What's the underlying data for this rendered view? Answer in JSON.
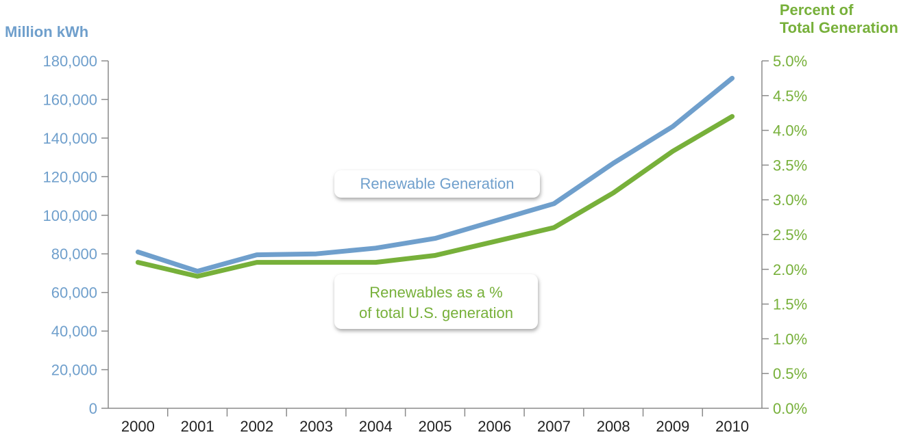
{
  "chart_data": {
    "type": "line",
    "categories": [
      "2000",
      "2001",
      "2002",
      "2003",
      "2004",
      "2005",
      "2006",
      "2007",
      "2008",
      "2009",
      "2010"
    ],
    "y_left": {
      "label_lines": [
        "Million kWh"
      ],
      "range": [
        0,
        180000
      ],
      "ticks": [
        "0",
        "20,000",
        "40,000",
        "60,000",
        "80,000",
        "100,000",
        "120,000",
        "140,000",
        "160,000",
        "180,000"
      ],
      "color": "#6f9fcc"
    },
    "y_right": {
      "label_lines": [
        "Percent of",
        "Total Generation"
      ],
      "range": [
        0,
        5.0
      ],
      "ticks": [
        "0.0%",
        "0.5%",
        "1.0%",
        "1.5%",
        "2.0%",
        "2.5%",
        "3.0%",
        "3.5%",
        "4.0%",
        "4.5%",
        "5.0%"
      ],
      "color": "#77b03a"
    },
    "series": [
      {
        "name_lines": [
          "Renewable Generation"
        ],
        "axis": "left",
        "color": "#6f9fcc",
        "values": [
          81000,
          71000,
          79500,
          80000,
          83000,
          88000,
          97000,
          106000,
          127000,
          146000,
          171000
        ]
      },
      {
        "name_lines": [
          "Renewables as a %",
          "of total U.S. generation"
        ],
        "axis": "right",
        "color": "#77b03a",
        "values": [
          2.1,
          1.9,
          2.1,
          2.1,
          2.1,
          2.2,
          2.4,
          2.6,
          3.1,
          3.7,
          4.2
        ]
      }
    ],
    "axis_line_color": "#8a8a8a",
    "grid": false,
    "legend": "inline callouts"
  }
}
